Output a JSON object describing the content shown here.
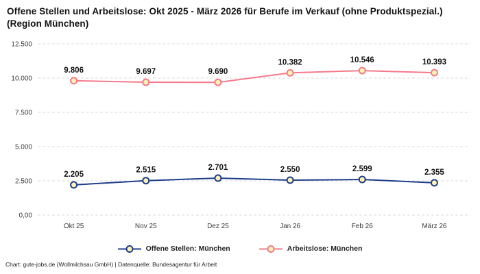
{
  "title": "Offene Stellen und Arbeitslose: Okt 2025 - März 2026 für Berufe im Verkauf (ohne Produktspezial.) (Region München)",
  "footer": "Chart: gute-jobs.de (Wollmilchsau GmbH) | Datenquelle: Bundesagentur für Arbeit",
  "chart_data": {
    "type": "line",
    "title": "Offene Stellen und Arbeitslose: Okt 2025 - März 2026 für Berufe im Verkauf (ohne Produktspezial.) (Region München)",
    "categories": [
      "Okt 25",
      "Nov 25",
      "Dez 25",
      "Jan 26",
      "Feb 26",
      "März 26"
    ],
    "series": [
      {
        "name": "Offene Stellen: München",
        "color": "#1f3d8c",
        "values": [
          2205,
          2515,
          2701,
          2550,
          2599,
          2355
        ],
        "labels": [
          "2.205",
          "2.515",
          "2.701",
          "2.550",
          "2.599",
          "2.355"
        ]
      },
      {
        "name": "Arbeitslose: München",
        "color": "#f5798b",
        "values": [
          9806,
          9697,
          9690,
          10382,
          10546,
          10393
        ],
        "labels": [
          "9.806",
          "9.697",
          "9.690",
          "10.382",
          "10.546",
          "10.393"
        ]
      }
    ],
    "marker_fill": "#fdf3b3",
    "grid": true,
    "grid_color": "#d8d8d8",
    "legend_position": "bottom",
    "xlabel": "",
    "ylabel": "",
    "ylim": [
      0,
      12500
    ],
    "yticks": [
      0,
      2500,
      5000,
      7500,
      10000,
      12500
    ],
    "ytick_labels": [
      "0,00",
      "2.500",
      "5.000",
      "7.500",
      "10.000",
      "12.500"
    ]
  }
}
